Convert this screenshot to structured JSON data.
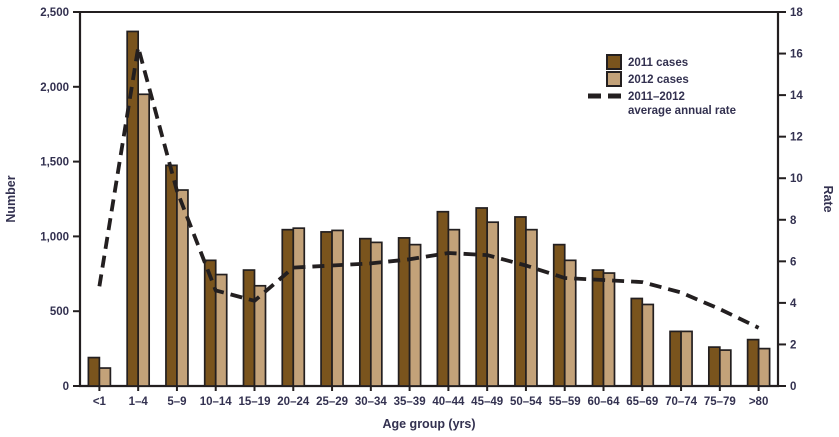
{
  "figure": {
    "left_axis_title": "Number",
    "right_axis_title": "Rate",
    "x_axis_title": "Age group (yrs)"
  },
  "legend": {
    "items": [
      {
        "label": "2011 cases"
      },
      {
        "label": "2012 cases"
      },
      {
        "label_line1": "2011–2012",
        "label_line2": "average annual rate"
      }
    ]
  },
  "colors": {
    "bar_2011": "#7a541d",
    "bar_2012": "#c3a279",
    "outline": "#231f20",
    "line": "#231f20",
    "text": "#333150"
  },
  "chart_data": {
    "type": "bar",
    "title": "",
    "xlabel": "Age group (yrs)",
    "categories": [
      "<1",
      "1–4",
      "5–9",
      "10–14",
      "15–19",
      "20–24",
      "25–29",
      "30–34",
      "35–39",
      "40–44",
      "45–49",
      "50–54",
      "55–59",
      "60–64",
      "65–69",
      "70–74",
      "75–79",
      ">80"
    ],
    "series": [
      {
        "name": "2011 cases",
        "type": "bar",
        "axis": "left",
        "color": "#7a541d",
        "values": [
          190,
          2370,
          1475,
          840,
          775,
          1045,
          1030,
          985,
          990,
          1165,
          1190,
          1130,
          945,
          775,
          585,
          365,
          260,
          310
        ]
      },
      {
        "name": "2012 cases",
        "type": "bar",
        "axis": "left",
        "color": "#c3a279",
        "values": [
          120,
          1950,
          1310,
          745,
          670,
          1055,
          1040,
          960,
          945,
          1045,
          1095,
          1045,
          840,
          755,
          545,
          365,
          240,
          250
        ]
      },
      {
        "name": "2011–2012 average annual rate",
        "type": "line",
        "dashed": true,
        "axis": "right",
        "color": "#231f20",
        "values": [
          4.8,
          16.3,
          9.4,
          4.6,
          4.1,
          5.7,
          5.8,
          5.9,
          6.1,
          6.4,
          6.3,
          5.8,
          5.2,
          5.1,
          5.0,
          4.5,
          3.7,
          2.8
        ]
      }
    ],
    "left_axis": {
      "label": "Number",
      "min": 0,
      "max": 2500,
      "step": 500,
      "tick_labels": [
        "0",
        "500",
        "1,000",
        "1,500",
        "2,000",
        "2,500"
      ]
    },
    "right_axis": {
      "label": "Rate",
      "min": 0,
      "max": 18,
      "step": 2,
      "tick_labels": [
        "0",
        "2",
        "4",
        "6",
        "8",
        "10",
        "12",
        "14",
        "16",
        "18"
      ]
    },
    "legend_position": "upper-right",
    "grid": false
  }
}
